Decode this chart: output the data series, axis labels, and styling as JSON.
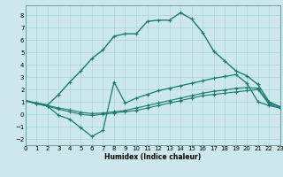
{
  "xlabel": "Humidex (Indice chaleur)",
  "background_color": "#cce8ec",
  "grid_color": "#aad4d8",
  "line_color": "#1a7a6e",
  "xlim": [
    0,
    23
  ],
  "ylim": [
    -2.5,
    8.8
  ],
  "yticks": [
    -2,
    -1,
    0,
    1,
    2,
    3,
    4,
    5,
    6,
    7,
    8
  ],
  "xticks": [
    0,
    1,
    2,
    3,
    4,
    5,
    6,
    7,
    8,
    9,
    10,
    11,
    12,
    13,
    14,
    15,
    16,
    17,
    18,
    19,
    20,
    21,
    22,
    23
  ],
  "line_upper_x": [
    0,
    1,
    2,
    3,
    4,
    5,
    6,
    7,
    8,
    9,
    10,
    11,
    12,
    13,
    14,
    15,
    16,
    17,
    18,
    19,
    20,
    21,
    22,
    23
  ],
  "line_upper_y": [
    1.1,
    0.9,
    0.75,
    1.6,
    2.6,
    3.5,
    4.5,
    5.2,
    6.3,
    6.5,
    6.5,
    7.5,
    7.6,
    7.6,
    8.2,
    7.7,
    6.6,
    5.1,
    4.3,
    3.5,
    3.1,
    2.4,
    1.0,
    0.6
  ],
  "line_mid1_x": [
    0,
    1,
    2,
    3,
    4,
    5,
    6,
    7,
    8,
    9,
    10,
    11,
    12,
    13,
    14,
    15,
    16,
    17,
    18,
    19,
    20,
    21,
    22,
    23
  ],
  "line_mid1_y": [
    1.1,
    0.85,
    0.65,
    -0.1,
    -0.4,
    -1.1,
    -1.8,
    -1.3,
    2.6,
    0.9,
    1.3,
    1.6,
    1.9,
    2.1,
    2.3,
    2.5,
    2.7,
    2.9,
    3.05,
    3.2,
    2.5,
    1.0,
    0.7,
    0.5
  ],
  "line_mid2_x": [
    0,
    1,
    2,
    3,
    4,
    5,
    6,
    7,
    8,
    9,
    10,
    11,
    12,
    13,
    14,
    15,
    16,
    17,
    18,
    19,
    20,
    21,
    22,
    23
  ],
  "line_mid2_y": [
    1.1,
    0.85,
    0.7,
    0.5,
    0.35,
    0.15,
    0.05,
    0.1,
    0.2,
    0.3,
    0.5,
    0.7,
    0.9,
    1.1,
    1.3,
    1.5,
    1.7,
    1.85,
    1.95,
    2.1,
    2.15,
    2.1,
    0.9,
    0.6
  ],
  "line_lower_x": [
    0,
    1,
    2,
    3,
    4,
    5,
    6,
    7,
    8,
    9,
    10,
    11,
    12,
    13,
    14,
    15,
    16,
    17,
    18,
    19,
    20,
    21,
    22,
    23
  ],
  "line_lower_y": [
    1.1,
    0.85,
    0.65,
    0.4,
    0.2,
    0.0,
    -0.1,
    0.0,
    0.1,
    0.2,
    0.3,
    0.5,
    0.7,
    0.9,
    1.1,
    1.3,
    1.5,
    1.6,
    1.7,
    1.8,
    1.9,
    2.0,
    0.8,
    0.5
  ]
}
